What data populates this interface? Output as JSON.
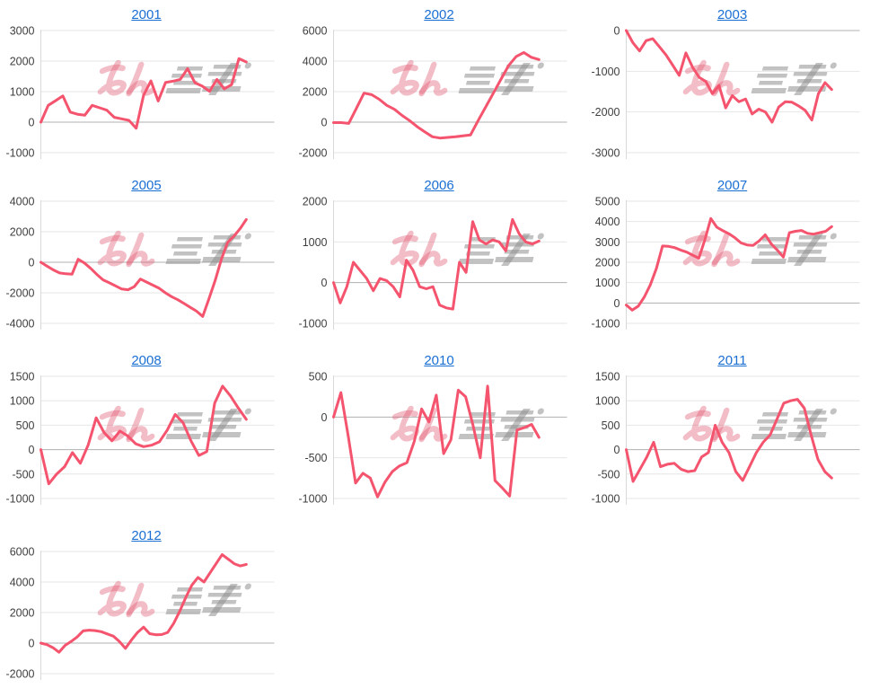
{
  "page": {
    "background": "#ffffff"
  },
  "style": {
    "line_color": "#f4546e",
    "link_color": "#1a6fd3",
    "grid_color": "#e6e6e6",
    "zero_line_color": "#b0b0b0",
    "axis_color": "#d9d9d9",
    "tick_label_color": "#3f3f3f",
    "watermark_pink": "#e05a74",
    "watermark_gray": "#8f8f8f"
  },
  "watermark": {
    "icon": "minkabu-logo-watermark"
  },
  "chart_data": [
    {
      "type": "line",
      "title": "2001",
      "xlabel": "",
      "ylabel": "",
      "ylim": [
        -1000,
        3000
      ],
      "yticks": [
        3000,
        2000,
        1000,
        0,
        -1000
      ],
      "values": [
        0,
        550,
        700,
        860,
        330,
        260,
        230,
        550,
        470,
        390,
        160,
        110,
        60,
        -200,
        880,
        1350,
        690,
        1300,
        1340,
        1400,
        1750,
        1290,
        1180,
        1010,
        1400,
        1090,
        1230,
        2080,
        1970
      ]
    },
    {
      "type": "line",
      "title": "2002",
      "xlabel": "",
      "ylabel": "",
      "ylim": [
        -2000,
        6000
      ],
      "yticks": [
        6000,
        4000,
        2000,
        0,
        -2000
      ],
      "values": [
        -30,
        -30,
        -80,
        900,
        1900,
        1800,
        1500,
        1100,
        840,
        440,
        100,
        -300,
        -640,
        -960,
        -1040,
        -1000,
        -960,
        -900,
        -840,
        100,
        1000,
        1900,
        2800,
        3700,
        4300,
        4560,
        4250,
        4100
      ]
    },
    {
      "type": "line",
      "title": "2003",
      "xlabel": "",
      "ylabel": "",
      "ylim": [
        -3000,
        0
      ],
      "yticks": [
        0,
        -1000,
        -2000,
        -3000
      ],
      "values": [
        0,
        -300,
        -500,
        -250,
        -200,
        -400,
        -600,
        -850,
        -1100,
        -550,
        -900,
        -1150,
        -1250,
        -1550,
        -1350,
        -1900,
        -1600,
        -1750,
        -1680,
        -2050,
        -1930,
        -2000,
        -2250,
        -1880,
        -1750,
        -1760,
        -1850,
        -1960,
        -2200,
        -1550,
        -1280,
        -1450
      ]
    },
    {
      "type": "line",
      "title": "2005",
      "xlabel": "",
      "ylabel": "",
      "ylim": [
        -4000,
        4000
      ],
      "yticks": [
        4000,
        2000,
        0,
        -2000,
        -4000
      ],
      "values": [
        0,
        -250,
        -500,
        -700,
        -750,
        -780,
        200,
        -50,
        -400,
        -800,
        -1150,
        -1350,
        -1550,
        -1750,
        -1800,
        -1600,
        -1100,
        -1300,
        -1500,
        -1700,
        -2000,
        -2250,
        -2450,
        -2700,
        -2950,
        -3200,
        -3550,
        -2400,
        -1200,
        200,
        1300,
        1700,
        2200,
        2800
      ]
    },
    {
      "type": "line",
      "title": "2006",
      "xlabel": "",
      "ylabel": "",
      "ylim": [
        -1000,
        2000
      ],
      "yticks": [
        2000,
        1000,
        0,
        -1000
      ],
      "values": [
        0,
        -500,
        -100,
        500,
        300,
        100,
        -200,
        100,
        50,
        -100,
        -350,
        550,
        300,
        -100,
        -150,
        -100,
        -550,
        -620,
        -650,
        500,
        250,
        1500,
        1050,
        950,
        1050,
        1000,
        780,
        1550,
        1200,
        1000,
        950,
        1020
      ]
    },
    {
      "type": "line",
      "title": "2007",
      "xlabel": "",
      "ylabel": "",
      "ylim": [
        -1000,
        5000
      ],
      "yticks": [
        5000,
        4000,
        3000,
        2000,
        1000,
        0,
        -1000
      ],
      "values": [
        -100,
        -350,
        -150,
        300,
        900,
        1700,
        2800,
        2780,
        2720,
        2600,
        2500,
        2350,
        2200,
        3100,
        4150,
        3720,
        3550,
        3400,
        3200,
        2950,
        2850,
        2830,
        3050,
        3350,
        2900,
        2600,
        2250,
        3450,
        3520,
        3560,
        3420,
        3380,
        3450,
        3520,
        3750
      ]
    },
    {
      "type": "line",
      "title": "2008",
      "xlabel": "",
      "ylabel": "",
      "ylim": [
        -1000,
        1500
      ],
      "yticks": [
        1500,
        1000,
        500,
        0,
        -500,
        -1000
      ],
      "values": [
        0,
        -700,
        -500,
        -350,
        -60,
        -280,
        100,
        650,
        350,
        180,
        380,
        280,
        120,
        60,
        90,
        160,
        400,
        720,
        550,
        180,
        -120,
        -40,
        950,
        1300,
        1100,
        850,
        620
      ]
    },
    {
      "type": "line",
      "title": "2010",
      "xlabel": "",
      "ylabel": "",
      "ylim": [
        -1000,
        500
      ],
      "yticks": [
        500,
        0,
        -500,
        -1000
      ],
      "values": [
        0,
        300,
        -230,
        -810,
        -690,
        -750,
        -980,
        -800,
        -670,
        -600,
        -560,
        -300,
        100,
        -60,
        270,
        -450,
        -280,
        330,
        250,
        -100,
        -500,
        380,
        -780,
        -870,
        -970,
        -160,
        -130,
        -90,
        -250
      ]
    },
    {
      "type": "line",
      "title": "2011",
      "xlabel": "",
      "ylabel": "",
      "ylim": [
        -1000,
        1500
      ],
      "yticks": [
        1500,
        1000,
        500,
        0,
        -500,
        -1000
      ],
      "values": [
        0,
        -650,
        -400,
        -150,
        150,
        -350,
        -300,
        -280,
        -400,
        -450,
        -430,
        -150,
        -60,
        500,
        150,
        -60,
        -450,
        -630,
        -350,
        -60,
        150,
        300,
        620,
        950,
        1000,
        1030,
        850,
        300,
        -200,
        -450,
        -580
      ]
    },
    {
      "type": "line",
      "title": "2012",
      "xlabel": "",
      "ylabel": "",
      "ylim": [
        -2000,
        6000
      ],
      "yticks": [
        6000,
        4000,
        2000,
        0,
        -2000
      ],
      "values": [
        0,
        -100,
        -300,
        -600,
        -150,
        100,
        400,
        800,
        850,
        820,
        750,
        600,
        450,
        100,
        -350,
        200,
        700,
        1050,
        620,
        550,
        560,
        700,
        1300,
        2100,
        3000,
        3800,
        4300,
        4000,
        4600,
        5200,
        5800,
        5500,
        5200,
        5050,
        5150
      ]
    }
  ]
}
